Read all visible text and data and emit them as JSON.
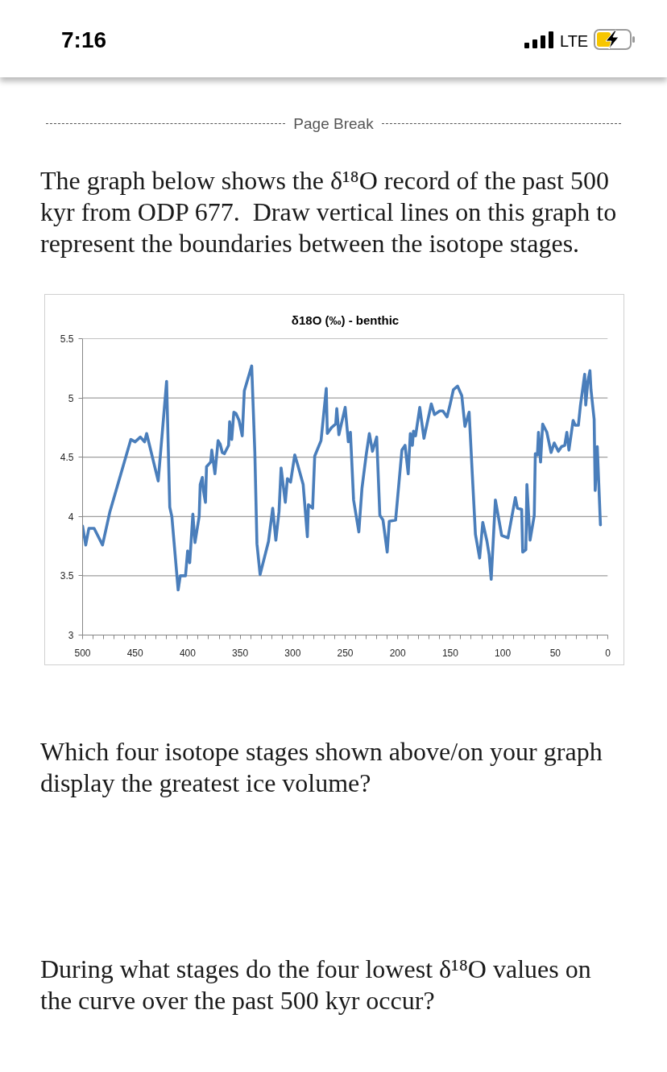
{
  "chart_data": {
    "type": "line",
    "title": "δ18O (‰) - benthic",
    "annotations": [
      "7:16",
      "LTE",
      "Page Break",
      "The graph below shows the δ¹⁸O record of the past 500 kyr from ODP 677.  Draw vertical lines on this graph to represent the boundaries between the isotope stages.",
      "Which four isotope stages shown above/on your graph display the greatest ice volume?",
      "During what stages do the four lowest δ¹⁸O values on the curve over the past 500 kyr occur?"
    ],
    "x": [
      500,
      497,
      494,
      489,
      481,
      474,
      454,
      450,
      445,
      441,
      439,
      428,
      420,
      417,
      415,
      409,
      407,
      402,
      400,
      398,
      395,
      393,
      389,
      388,
      386,
      385,
      383,
      382,
      378,
      377,
      374,
      371,
      369,
      367,
      365,
      361,
      360,
      358,
      356,
      354,
      351,
      348,
      346,
      339,
      336,
      334,
      331,
      323,
      319,
      316,
      313,
      311,
      307,
      305,
      302,
      298,
      295,
      290,
      286,
      285,
      281,
      279,
      273,
      268,
      267,
      263,
      259,
      258,
      256,
      250,
      247,
      245,
      242,
      237,
      234,
      230,
      227,
      224,
      220,
      217,
      214,
      210,
      208,
      202,
      196,
      193,
      190,
      188,
      186,
      185,
      183,
      179,
      175,
      168,
      165,
      160,
      157,
      153,
      150,
      147,
      143,
      139,
      136,
      132,
      129,
      126,
      122,
      119,
      115,
      113,
      111,
      107,
      101,
      95,
      88,
      86,
      82,
      81,
      78,
      77,
      74,
      70,
      69,
      67,
      66,
      64,
      62,
      58,
      54,
      51,
      47,
      44,
      41,
      39,
      37,
      33,
      31,
      28,
      26,
      22,
      21,
      19,
      17,
      16,
      13,
      12,
      10,
      7
    ],
    "series": [
      {
        "color": "#4a7ebb",
        "values": [
          3.92,
          3.76,
          3.9,
          3.9,
          3.76,
          4.04,
          4.65,
          4.63,
          4.67,
          4.63,
          4.7,
          4.3,
          5.14,
          4.08,
          4.0,
          3.38,
          3.5,
          3.5,
          3.71,
          3.61,
          4.02,
          3.78,
          4.0,
          4.27,
          4.33,
          4.22,
          4.12,
          4.42,
          4.46,
          4.56,
          4.36,
          4.64,
          4.61,
          4.54,
          4.53,
          4.6,
          4.8,
          4.65,
          4.88,
          4.87,
          4.81,
          4.68,
          5.06,
          5.27,
          4.54,
          3.77,
          3.51,
          3.79,
          4.07,
          3.8,
          4.04,
          4.41,
          4.12,
          4.32,
          4.29,
          4.52,
          4.43,
          4.27,
          3.83,
          4.1,
          4.07,
          4.51,
          4.64,
          5.08,
          4.7,
          4.75,
          4.78,
          4.91,
          4.69,
          4.92,
          4.63,
          4.71,
          4.14,
          3.87,
          4.24,
          4.52,
          4.7,
          4.55,
          4.67,
          4.01,
          3.97,
          3.7,
          3.96,
          3.97,
          4.56,
          4.6,
          4.36,
          4.7,
          4.6,
          4.72,
          4.68,
          4.92,
          4.66,
          4.95,
          4.86,
          4.89,
          4.89,
          4.84,
          4.95,
          5.07,
          5.1,
          5.02,
          4.76,
          4.88,
          4.36,
          3.85,
          3.65,
          3.95,
          3.79,
          3.68,
          3.47,
          4.14,
          3.84,
          3.82,
          4.16,
          4.07,
          4.06,
          3.7,
          3.72,
          4.27,
          3.8,
          4.01,
          4.53,
          4.52,
          4.71,
          4.46,
          4.78,
          4.71,
          4.54,
          4.62,
          4.55,
          4.59,
          4.6,
          4.71,
          4.56,
          4.81,
          4.77,
          4.77,
          4.94,
          5.2,
          4.94,
          5.14,
          5.23,
          5.07,
          4.82,
          4.22,
          4.59,
          3.93
        ]
      }
    ],
    "xlim": [
      500,
      0
    ],
    "ylim": [
      3,
      5.5
    ],
    "xticks": [
      500,
      {
        "value": 490,
        "label": null
      },
      {
        "value": 480,
        "label": null
      },
      {
        "value": 470,
        "label": null
      },
      {
        "value": 460,
        "label": null
      },
      450,
      {
        "value": 440,
        "label": null
      },
      {
        "value": 430,
        "label": null
      },
      {
        "value": 420,
        "label": null
      },
      {
        "value": 410,
        "label": null
      },
      400,
      {
        "value": 390,
        "label": null
      },
      {
        "value": 380,
        "label": null
      },
      {
        "value": 370,
        "label": null
      },
      {
        "value": 360,
        "label": null
      },
      350,
      {
        "value": 340,
        "label": null
      },
      {
        "value": 330,
        "label": null
      },
      {
        "value": 320,
        "label": null
      },
      {
        "value": 310,
        "label": null
      },
      300,
      {
        "value": 290,
        "label": null
      },
      {
        "value": 280,
        "label": null
      },
      {
        "value": 270,
        "label": null
      },
      {
        "value": 260,
        "label": null
      },
      250,
      {
        "value": 240,
        "label": null
      },
      {
        "value": 230,
        "label": null
      },
      {
        "value": 220,
        "label": null
      },
      {
        "value": 210,
        "label": null
      },
      200,
      {
        "value": 190,
        "label": null
      },
      {
        "value": 180,
        "label": null
      },
      {
        "value": 170,
        "label": null
      },
      {
        "value": 160,
        "label": null
      },
      150,
      {
        "value": 140,
        "label": null
      },
      {
        "value": 130,
        "label": null
      },
      {
        "value": 120,
        "label": null
      },
      {
        "value": 110,
        "label": null
      },
      100,
      {
        "value": 90,
        "label": null
      },
      {
        "value": 80,
        "label": null
      },
      {
        "value": 70,
        "label": null
      },
      {
        "value": 60,
        "label": null
      },
      50,
      {
        "value": 40,
        "label": null
      },
      {
        "value": 30,
        "label": null
      },
      {
        "value": 20,
        "label": null
      },
      {
        "value": 10,
        "label": null
      },
      0
    ],
    "yticks": [
      3,
      3.5,
      4,
      4.5,
      5,
      5.5
    ],
    "grid": "y",
    "line_style": "solid"
  }
}
